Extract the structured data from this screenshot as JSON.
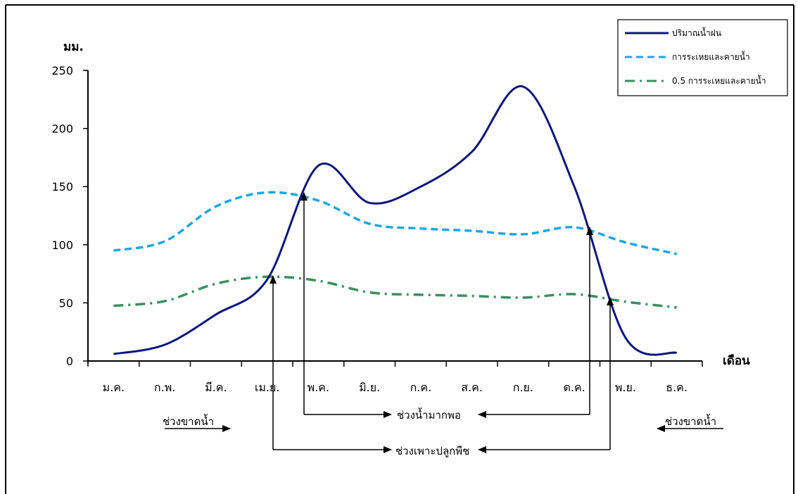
{
  "chart_data": {
    "type": "line",
    "ylabel": "มม.",
    "xlabel": "เดือน",
    "ylim": [
      0,
      250
    ],
    "yticks": [
      0,
      50,
      100,
      150,
      200,
      250
    ],
    "categories": [
      "ม.ค.",
      "ก.พ.",
      "มี.ค.",
      "เม.ย.",
      "พ.ค.",
      "มิ.ย.",
      "ก.ค.",
      "ส.ค.",
      "ก.ย.",
      "ต.ค.",
      "พ.ย.",
      "ธ.ค."
    ],
    "series": [
      {
        "name": "ปริมาณน้ำฝน",
        "color": "#0d1680",
        "style": "solid",
        "values": [
          6,
          14,
          40,
          70,
          168,
          136,
          150,
          180,
          236,
          150,
          20,
          7
        ]
      },
      {
        "name": "การระเหยและคายน้ำ",
        "color": "#1aa7e6",
        "style": "dashed",
        "values": [
          95,
          103,
          133,
          145,
          138,
          118,
          114,
          112,
          109,
          115,
          102,
          92
        ]
      },
      {
        "name": "0.5 การระเหยและคายน้ำ",
        "color": "#3a8f5f",
        "style": "dash-dot",
        "values": [
          47.5,
          51.5,
          66.5,
          72.5,
          69,
          59,
          57,
          56,
          54.5,
          57.5,
          51,
          46
        ]
      }
    ],
    "grid": false,
    "legend": "top-right",
    "annotations": {
      "water_shortage": "ช่วงขาดน้ำ",
      "sufficient_water": "ช่วงน้ำมากพอ",
      "growing_season": "ช่วงเพาะปลูกพืช"
    }
  }
}
